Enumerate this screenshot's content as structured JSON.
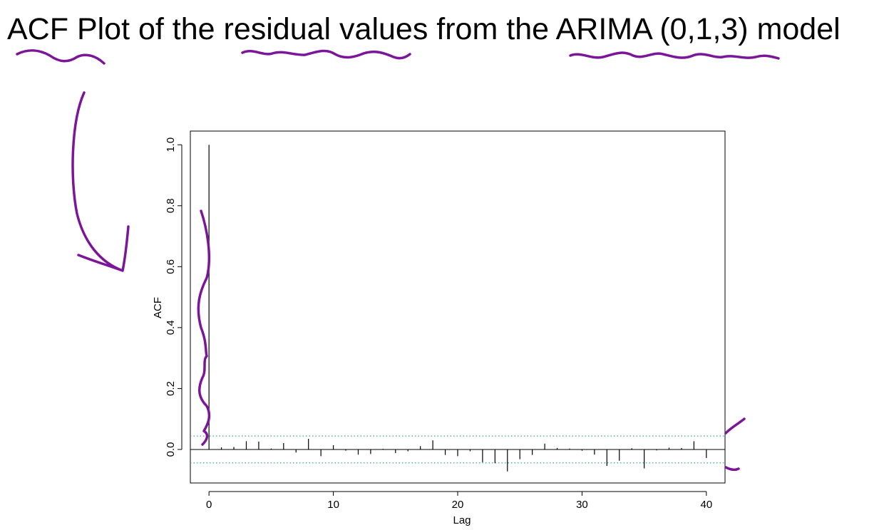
{
  "slide": {
    "title": "ACF Plot of the residual values from the ARIMA (0,1,3) model"
  },
  "colors": {
    "annotation": "#7b169b",
    "confidence_band": "#3fa39a",
    "bars": "#000000"
  },
  "chart_data": {
    "type": "bar",
    "xlabel": "Lag",
    "ylabel": "ACF",
    "xlim": [
      -1.5,
      41.5
    ],
    "ylim": [
      -0.11,
      1.045
    ],
    "x_ticks": [
      0,
      10,
      20,
      30,
      40
    ],
    "y_ticks": [
      0.0,
      0.2,
      0.4,
      0.6,
      0.8,
      1.0
    ],
    "y_tick_labels": [
      "0.0",
      "0.2",
      "0.4",
      "0.6",
      "0.8",
      "1.0"
    ],
    "confidence_bound": 0.044,
    "lags": [
      0,
      1,
      2,
      3,
      4,
      5,
      6,
      7,
      8,
      9,
      10,
      11,
      12,
      13,
      14,
      15,
      16,
      17,
      18,
      19,
      20,
      21,
      22,
      23,
      24,
      25,
      26,
      27,
      28,
      29,
      30,
      31,
      32,
      33,
      34,
      35,
      36,
      37,
      38,
      39,
      40
    ],
    "values": [
      1.0,
      0.007,
      0.008,
      0.027,
      0.026,
      0.003,
      0.021,
      -0.01,
      0.035,
      -0.022,
      0.014,
      -0.004,
      -0.017,
      -0.015,
      0.002,
      -0.012,
      -0.006,
      0.011,
      0.03,
      -0.018,
      -0.022,
      -0.006,
      -0.042,
      -0.045,
      -0.072,
      -0.032,
      -0.018,
      0.019,
      0.005,
      0.003,
      -0.004,
      -0.017,
      -0.054,
      -0.037,
      0.004,
      -0.062,
      -0.003,
      0.006,
      0.005,
      0.027,
      -0.028
    ],
    "grid": false,
    "legend": "none"
  }
}
